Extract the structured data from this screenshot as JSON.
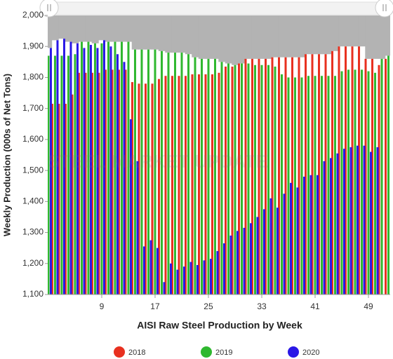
{
  "chart_data": {
    "type": "bar",
    "watermark": "STEEL MARKET UPDATE",
    "y_axis_label": "Weekly Production (000s of Net Tons)",
    "x_axis_label": "AISI Raw Steel Production by Week",
    "x": [
      1,
      2,
      3,
      4,
      5,
      6,
      7,
      8,
      9,
      10,
      11,
      12,
      13,
      14,
      15,
      16,
      17,
      18,
      19,
      20,
      21,
      22,
      23,
      24,
      25,
      26,
      27,
      28,
      29,
      30,
      31,
      32,
      33,
      34,
      35,
      36,
      37,
      38,
      39,
      40,
      41,
      42,
      43,
      44,
      45,
      46,
      47,
      48,
      49,
      50,
      51,
      52
    ],
    "series": [
      {
        "name": "2018",
        "color": "#e8301f",
        "values": [
          1715,
          1715,
          1715,
          1715,
          1745,
          1815,
          1815,
          1815,
          1815,
          1825,
          1825,
          1825,
          1825,
          1785,
          1780,
          1780,
          1780,
          1795,
          1805,
          1805,
          1805,
          1805,
          1810,
          1810,
          1810,
          1810,
          1815,
          1835,
          1835,
          1845,
          1860,
          1860,
          1860,
          1860,
          1865,
          1865,
          1865,
          1865,
          1865,
          1875,
          1875,
          1875,
          1875,
          1885,
          1900,
          1900,
          1900,
          1900,
          1860,
          1860,
          1840,
          1860
        ]
      },
      {
        "name": "2019",
        "color": "#2fb82f",
        "values": [
          1870,
          1870,
          1870,
          1870,
          1875,
          1915,
          1915,
          1910,
          1910,
          1915,
          1915,
          1915,
          1915,
          1890,
          1890,
          1890,
          1890,
          1885,
          1880,
          1880,
          1880,
          1875,
          1865,
          1860,
          1860,
          1860,
          1850,
          1845,
          1840,
          1845,
          1845,
          1840,
          1840,
          1840,
          1835,
          1810,
          1800,
          1800,
          1800,
          1805,
          1805,
          1805,
          1805,
          1805,
          1820,
          1825,
          1825,
          1825,
          1820,
          1815,
          1860,
          1870
        ]
      },
      {
        "name": "2020",
        "color": "#2a17e6",
        "values": [
          1895,
          1920,
          1925,
          1915,
          1910,
          1895,
          1905,
          1895,
          1920,
          1900,
          1875,
          1850,
          1665,
          1530,
          1255,
          1275,
          1250,
          1140,
          1200,
          1180,
          1190,
          1205,
          1195,
          1210,
          1215,
          1240,
          1265,
          1290,
          1305,
          1315,
          1330,
          1350,
          1375,
          1410,
          1380,
          1425,
          1460,
          1445,
          1480,
          1485,
          1485,
          1530,
          1540,
          1555,
          1570,
          1575,
          1580,
          1580,
          1560,
          1575,
          null,
          null
        ]
      }
    ],
    "xlim": [
      0.9,
      52.26
    ],
    "xticks": [
      9,
      17,
      25,
      33,
      41,
      49
    ],
    "ylim": [
      1100,
      2000
    ],
    "yticks": [
      {
        "value": 1100,
        "label": "1,100"
      },
      {
        "value": 1200,
        "label": "1,200"
      },
      {
        "value": 1300,
        "label": "1,300"
      },
      {
        "value": 1400,
        "label": "1,400"
      },
      {
        "value": 1500,
        "label": "1,500"
      },
      {
        "value": 1600,
        "label": "1,600"
      },
      {
        "value": 1700,
        "label": "1,700"
      },
      {
        "value": 1800,
        "label": "1,800"
      },
      {
        "value": 1900,
        "label": "1,900"
      },
      {
        "value": 2000,
        "label": "2,000"
      }
    ]
  }
}
